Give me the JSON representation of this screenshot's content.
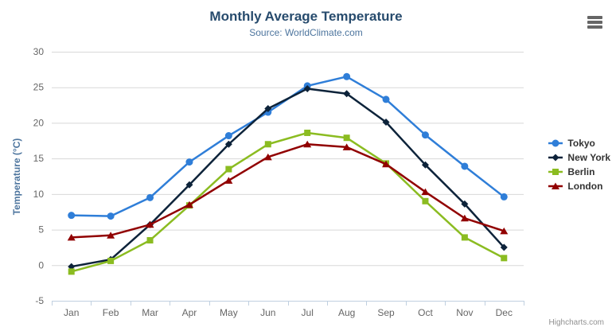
{
  "chart_data": {
    "type": "line",
    "title": "Monthly Average Temperature",
    "subtitle": "Source: WorldClimate.com",
    "categories": [
      "Jan",
      "Feb",
      "Mar",
      "Apr",
      "May",
      "Jun",
      "Jul",
      "Aug",
      "Sep",
      "Oct",
      "Nov",
      "Dec"
    ],
    "xlabel": "",
    "ylabel": "Temperature (°C)",
    "ylim": [
      -5,
      30
    ],
    "yticks": [
      -5,
      0,
      5,
      10,
      15,
      20,
      25,
      30
    ],
    "grid": true,
    "legend_position": "right-middle-vertical",
    "series": [
      {
        "name": "Tokyo",
        "color": "#2f7ed8",
        "marker": "circle",
        "values": [
          7.0,
          6.9,
          9.5,
          14.5,
          18.2,
          21.5,
          25.2,
          26.5,
          23.3,
          18.3,
          13.9,
          9.6
        ]
      },
      {
        "name": "New York",
        "color": "#0d233a",
        "marker": "diamond",
        "values": [
          -0.2,
          0.8,
          5.7,
          11.3,
          17.0,
          22.0,
          24.8,
          24.1,
          20.1,
          14.1,
          8.6,
          2.5
        ]
      },
      {
        "name": "Berlin",
        "color": "#8bbc21",
        "marker": "square",
        "values": [
          -0.9,
          0.6,
          3.5,
          8.4,
          13.5,
          17.0,
          18.6,
          17.9,
          14.3,
          9.0,
          3.9,
          1.0
        ]
      },
      {
        "name": "London",
        "color": "#910000",
        "marker": "triangle",
        "values": [
          3.9,
          4.2,
          5.7,
          8.5,
          11.9,
          15.2,
          17.0,
          16.6,
          14.2,
          10.3,
          6.6,
          4.8
        ]
      }
    ]
  },
  "credits": {
    "label": "Highcharts.com"
  },
  "icons": {
    "context_menu": "hamburger"
  },
  "colors": {
    "title": "#274b6d",
    "subtitle": "#4d759e",
    "axis_title": "#4d759e",
    "tick_label": "#666666",
    "gridline": "#d8d8d8",
    "axis_line": "#c0d0e0",
    "legend_text": "#333333",
    "credits": "#909090",
    "menu_icon": "#666666"
  }
}
